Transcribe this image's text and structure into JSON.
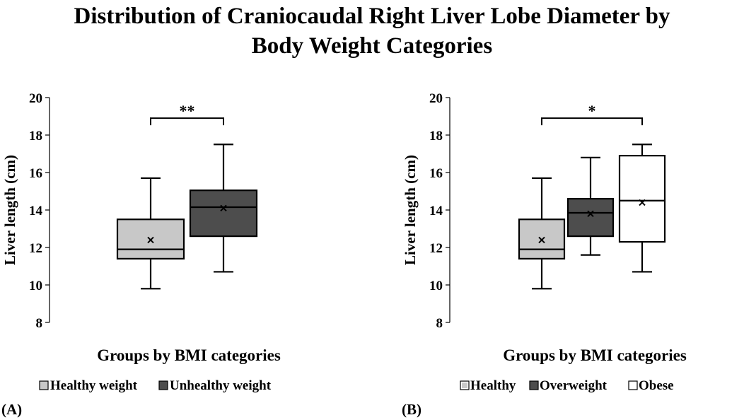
{
  "title_line1": "Distribution of Craniocaudal Right Liver Lobe Diameter by",
  "title_line2": "Body Weight Categories",
  "colors": {
    "light": "#c8c8c8",
    "dark": "#4d4d4d",
    "white": "#ffffff",
    "stroke": "#000000"
  },
  "chart_data": [
    {
      "type": "box",
      "panel_label": "(A)",
      "xlabel": "Groups by BMI categories",
      "ylabel": "Liver length (cm)",
      "ylim": [
        8,
        20
      ],
      "yticks": [
        "8",
        "10",
        "12",
        "14",
        "16",
        "18",
        "20"
      ],
      "series": [
        {
          "name": "Healthy weight",
          "color": "#c8c8c8",
          "min": 9.8,
          "q1": 11.4,
          "median": 11.9,
          "q3": 13.5,
          "max": 15.7,
          "mean": 12.4
        },
        {
          "name": "Unhealthy weight",
          "color": "#4d4d4d",
          "min": 10.7,
          "q1": 12.6,
          "median": 14.15,
          "q3": 15.05,
          "max": 17.5,
          "mean": 14.1
        }
      ],
      "significance": {
        "from": 0,
        "to": 1,
        "label": "**",
        "y": 18.9
      }
    },
    {
      "type": "box",
      "panel_label": "(B)",
      "xlabel": "Groups by BMI categories",
      "ylabel": "Liver length (cm)",
      "ylim": [
        8,
        20
      ],
      "yticks": [
        "8",
        "10",
        "12",
        "14",
        "16",
        "18",
        "20"
      ],
      "series": [
        {
          "name": "Healthy",
          "color": "#c8c8c8",
          "min": 9.8,
          "q1": 11.4,
          "median": 11.9,
          "q3": 13.5,
          "max": 15.7,
          "mean": 12.4
        },
        {
          "name": "Overweight",
          "color": "#4d4d4d",
          "min": 11.6,
          "q1": 12.6,
          "median": 13.85,
          "q3": 14.6,
          "max": 16.8,
          "mean": 13.8
        },
        {
          "name": "Obese",
          "color": "#ffffff",
          "min": 10.7,
          "q1": 12.3,
          "median": 14.5,
          "q3": 16.9,
          "max": 17.5,
          "mean": 14.4
        }
      ],
      "significance": {
        "from": 0,
        "to": 2,
        "label": "*",
        "y": 18.9
      }
    }
  ]
}
